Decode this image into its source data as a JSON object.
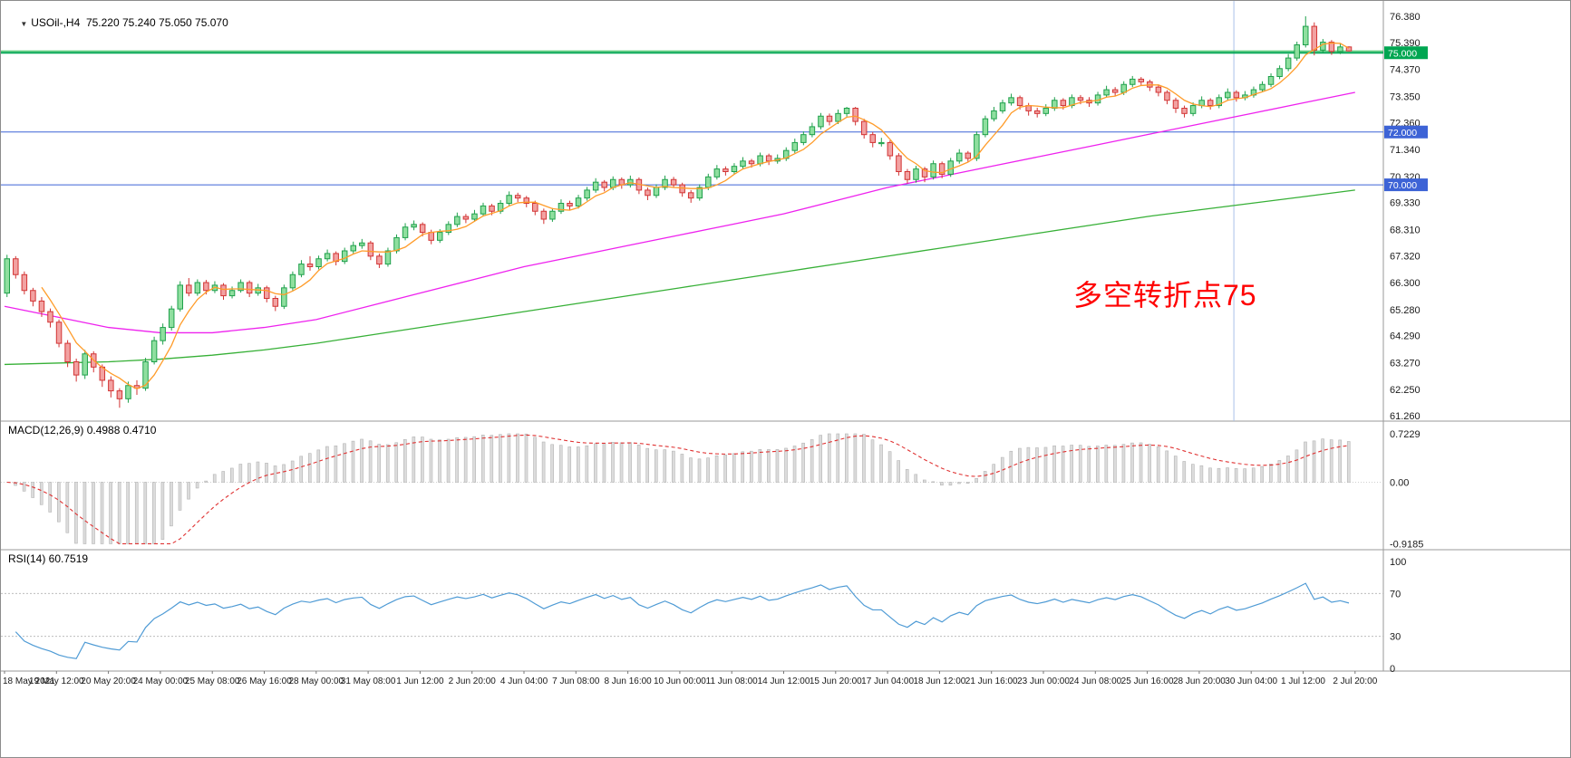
{
  "chart_data": {
    "type": "candlestick",
    "symbol": "USOil-",
    "timeframe": "H4",
    "bars_per_label": 6,
    "x_labels": [
      "18 May 2021",
      "19 May 12:00",
      "20 May 20:00",
      "24 May 00:00",
      "25 May 08:00",
      "26 May 16:00",
      "28 May 00:00",
      "31 May 08:00",
      "1 Jun 12:00",
      "2 Jun 20:00",
      "4 Jun 04:00",
      "7 Jun 08:00",
      "8 Jun 16:00",
      "10 Jun 00:00",
      "11 Jun 08:00",
      "14 Jun 12:00",
      "15 Jun 20:00",
      "17 Jun 04:00",
      "18 Jun 12:00",
      "21 Jun 16:00",
      "23 Jun 00:00",
      "24 Jun 08:00",
      "25 Jun 16:00",
      "28 Jun 20:00",
      "30 Jun 04:00",
      "1 Jul 12:00",
      "2 Jul 20:00"
    ],
    "panes": {
      "main": {
        "title": "USOil-,H4  75.220 75.240 75.050 75.070",
        "last_ohlc": {
          "open": 75.22,
          "high": 75.24,
          "low": 75.05,
          "close": 75.07
        },
        "y_ticks": [
          76.38,
          75.39,
          74.37,
          73.35,
          72.36,
          71.34,
          70.32,
          69.33,
          68.31,
          67.32,
          66.3,
          65.28,
          64.29,
          63.27,
          62.25,
          61.26
        ],
        "bull_color": "#1ea04b",
        "bull_fill": "#8fdf9f",
        "bear_color": "#d23434",
        "bear_fill": "#f2a2a2",
        "vline_index": 142,
        "levels": [
          {
            "price": 75.0,
            "label": "75.000",
            "color": "#00a651",
            "badge_bg": "#00a651",
            "width": 2
          },
          {
            "price": 75.07,
            "label": null,
            "color": "#2ebf57",
            "badge_bg": null,
            "width": 1
          },
          {
            "price": 72.0,
            "label": "72.000",
            "color": "#3d63d6",
            "badge_bg": "#3d63d6",
            "width": 1
          },
          {
            "price": 70.0,
            "label": "70.000",
            "color": "#3d63d6",
            "badge_bg": "#3d63d6",
            "width": 1
          }
        ],
        "moving_averages": [
          {
            "name": "fast",
            "color": "#ff9c2a",
            "period": 5
          },
          {
            "name": "mid",
            "color": "#ee22ee",
            "anchors": [
              65.4,
              65.0,
              64.6,
              64.4,
              64.4,
              64.6,
              64.9,
              65.4,
              65.9,
              66.4,
              66.9,
              67.3,
              67.7,
              68.1,
              68.5,
              68.9,
              69.4,
              69.9,
              70.3,
              70.7,
              71.1,
              71.5,
              71.9,
              72.3,
              72.7,
              73.1,
              73.5
            ]
          },
          {
            "name": "slow",
            "color": "#37b037",
            "anchors": [
              63.2,
              63.25,
              63.3,
              63.4,
              63.55,
              63.75,
              64.0,
              64.3,
              64.6,
              64.9,
              65.2,
              65.5,
              65.8,
              66.1,
              66.4,
              66.7,
              67.0,
              67.3,
              67.6,
              67.9,
              68.2,
              68.5,
              68.8,
              69.05,
              69.3,
              69.55,
              69.8
            ]
          }
        ],
        "annotation": {
          "text": "多空转折点75",
          "color": "#ff0000"
        },
        "candles_ohlc": [
          [
            65.9,
            67.35,
            65.75,
            67.2
          ],
          [
            67.2,
            67.3,
            66.45,
            66.6
          ],
          [
            66.6,
            66.72,
            65.85,
            66.0
          ],
          [
            66.0,
            66.1,
            65.4,
            65.6
          ],
          [
            65.6,
            65.75,
            65.0,
            65.2
          ],
          [
            65.2,
            65.32,
            64.6,
            64.8
          ],
          [
            64.8,
            64.9,
            63.85,
            64.0
          ],
          [
            64.0,
            64.12,
            63.1,
            63.3
          ],
          [
            63.3,
            63.42,
            62.55,
            62.8
          ],
          [
            62.8,
            63.75,
            62.65,
            63.6
          ],
          [
            63.6,
            63.7,
            62.9,
            63.1
          ],
          [
            63.1,
            63.2,
            62.35,
            62.6
          ],
          [
            62.6,
            62.75,
            61.95,
            62.2
          ],
          [
            62.2,
            62.3,
            61.56,
            61.9
          ],
          [
            61.9,
            62.55,
            61.75,
            62.4
          ],
          [
            62.4,
            62.6,
            62.05,
            62.3
          ],
          [
            62.3,
            63.45,
            62.2,
            63.3
          ],
          [
            63.3,
            64.25,
            63.2,
            64.1
          ],
          [
            64.1,
            64.75,
            63.95,
            64.6
          ],
          [
            64.6,
            65.42,
            64.48,
            65.3
          ],
          [
            65.3,
            66.35,
            65.2,
            66.2
          ],
          [
            66.2,
            66.47,
            65.78,
            65.9
          ],
          [
            65.9,
            66.42,
            65.8,
            66.3
          ],
          [
            66.3,
            66.4,
            65.85,
            66.0
          ],
          [
            66.0,
            66.35,
            65.9,
            66.2
          ],
          [
            66.2,
            66.28,
            65.65,
            65.8
          ],
          [
            65.8,
            66.15,
            65.7,
            66.0
          ],
          [
            66.0,
            66.42,
            65.92,
            66.3
          ],
          [
            66.3,
            66.38,
            65.75,
            65.9
          ],
          [
            65.9,
            66.25,
            65.8,
            66.1
          ],
          [
            66.1,
            66.18,
            65.55,
            65.7
          ],
          [
            65.7,
            65.8,
            65.22,
            65.4
          ],
          [
            65.4,
            66.22,
            65.3,
            66.1
          ],
          [
            66.1,
            66.72,
            66.0,
            66.6
          ],
          [
            66.6,
            67.15,
            66.5,
            67.0
          ],
          [
            67.0,
            67.3,
            66.75,
            66.9
          ],
          [
            66.9,
            67.32,
            66.8,
            67.2
          ],
          [
            67.2,
            67.55,
            67.1,
            67.4
          ],
          [
            67.4,
            67.48,
            66.95,
            67.1
          ],
          [
            67.1,
            67.62,
            67.0,
            67.5
          ],
          [
            67.5,
            67.85,
            67.4,
            67.7
          ],
          [
            67.7,
            67.95,
            67.58,
            67.8
          ],
          [
            67.8,
            67.88,
            67.15,
            67.3
          ],
          [
            67.3,
            67.4,
            66.85,
            67.0
          ],
          [
            67.0,
            67.62,
            66.9,
            67.5
          ],
          [
            67.5,
            68.12,
            67.4,
            68.0
          ],
          [
            68.0,
            68.55,
            67.9,
            68.4
          ],
          [
            68.4,
            68.65,
            68.28,
            68.5
          ],
          [
            68.5,
            68.58,
            68.05,
            68.2
          ],
          [
            68.2,
            68.3,
            67.75,
            67.9
          ],
          [
            67.9,
            68.32,
            67.8,
            68.2
          ],
          [
            68.2,
            68.62,
            68.1,
            68.5
          ],
          [
            68.5,
            68.95,
            68.4,
            68.8
          ],
          [
            68.8,
            68.9,
            68.55,
            68.7
          ],
          [
            68.7,
            69.05,
            68.6,
            68.9
          ],
          [
            68.9,
            69.32,
            68.8,
            69.2
          ],
          [
            69.2,
            69.28,
            68.85,
            69.0
          ],
          [
            69.0,
            69.42,
            68.9,
            69.3
          ],
          [
            69.3,
            69.75,
            69.2,
            69.6
          ],
          [
            69.6,
            69.7,
            69.35,
            69.5
          ],
          [
            69.5,
            69.58,
            69.15,
            69.3
          ],
          [
            69.3,
            69.4,
            68.85,
            69.0
          ],
          [
            69.0,
            69.1,
            68.52,
            68.7
          ],
          [
            68.7,
            69.12,
            68.6,
            69.0
          ],
          [
            69.0,
            69.45,
            68.9,
            69.3
          ],
          [
            69.3,
            69.4,
            69.05,
            69.2
          ],
          [
            69.2,
            69.62,
            69.1,
            69.5
          ],
          [
            69.5,
            69.92,
            69.4,
            69.8
          ],
          [
            69.8,
            70.25,
            69.7,
            70.1
          ],
          [
            70.1,
            70.18,
            69.75,
            69.9
          ],
          [
            69.9,
            70.32,
            69.8,
            70.2
          ],
          [
            70.2,
            70.28,
            69.85,
            70.0
          ],
          [
            70.0,
            70.35,
            69.9,
            70.2
          ],
          [
            70.2,
            70.28,
            69.65,
            69.8
          ],
          [
            69.8,
            69.9,
            69.42,
            69.6
          ],
          [
            69.6,
            70.02,
            69.5,
            69.9
          ],
          [
            69.9,
            70.35,
            69.8,
            70.2
          ],
          [
            70.2,
            70.3,
            69.88,
            70.0
          ],
          [
            70.0,
            70.08,
            69.55,
            69.7
          ],
          [
            69.7,
            69.8,
            69.32,
            69.5
          ],
          [
            69.5,
            70.02,
            69.4,
            69.9
          ],
          [
            69.9,
            70.42,
            69.8,
            70.3
          ],
          [
            70.3,
            70.75,
            70.2,
            70.6
          ],
          [
            70.6,
            70.7,
            70.35,
            70.5
          ],
          [
            70.5,
            70.82,
            70.4,
            70.7
          ],
          [
            70.7,
            71.05,
            70.6,
            70.9
          ],
          [
            70.9,
            70.98,
            70.65,
            70.8
          ],
          [
            70.8,
            71.22,
            70.7,
            71.1
          ],
          [
            71.1,
            71.18,
            70.75,
            70.9
          ],
          [
            70.9,
            71.15,
            70.8,
            71.0
          ],
          [
            71.0,
            71.42,
            70.9,
            71.3
          ],
          [
            71.3,
            71.75,
            71.2,
            71.6
          ],
          [
            71.6,
            72.02,
            71.5,
            71.9
          ],
          [
            71.9,
            72.35,
            71.8,
            72.2
          ],
          [
            72.2,
            72.72,
            72.1,
            72.6
          ],
          [
            72.6,
            72.7,
            72.25,
            72.4
          ],
          [
            72.4,
            72.85,
            72.3,
            72.7
          ],
          [
            72.7,
            72.95,
            72.58,
            72.9
          ],
          [
            72.9,
            72.95,
            72.25,
            72.4
          ],
          [
            72.4,
            72.5,
            71.75,
            71.9
          ],
          [
            71.9,
            72.0,
            71.42,
            71.6
          ],
          [
            71.6,
            71.78,
            71.45,
            71.6
          ],
          [
            71.6,
            71.68,
            70.95,
            71.1
          ],
          [
            71.1,
            71.2,
            70.35,
            70.5
          ],
          [
            70.5,
            70.6,
            70.05,
            70.2
          ],
          [
            70.2,
            70.72,
            70.08,
            70.6
          ],
          [
            70.6,
            70.68,
            70.1,
            70.3
          ],
          [
            70.3,
            70.92,
            70.2,
            70.8
          ],
          [
            70.8,
            70.88,
            70.25,
            70.4
          ],
          [
            70.4,
            71.02,
            70.3,
            70.9
          ],
          [
            70.9,
            71.35,
            70.8,
            71.2
          ],
          [
            71.2,
            71.28,
            70.85,
            71.0
          ],
          [
            71.0,
            72.02,
            70.9,
            71.9
          ],
          [
            71.9,
            72.62,
            71.8,
            72.5
          ],
          [
            72.5,
            72.95,
            72.4,
            72.8
          ],
          [
            72.8,
            73.22,
            72.7,
            73.1
          ],
          [
            73.1,
            73.45,
            73.0,
            73.3
          ],
          [
            73.3,
            73.38,
            72.85,
            73.0
          ],
          [
            73.0,
            73.1,
            72.62,
            72.8
          ],
          [
            72.8,
            72.92,
            72.55,
            72.7
          ],
          [
            72.7,
            73.05,
            72.6,
            72.9
          ],
          [
            72.9,
            73.32,
            72.8,
            73.2
          ],
          [
            73.2,
            73.28,
            72.85,
            73.0
          ],
          [
            73.0,
            73.42,
            72.9,
            73.3
          ],
          [
            73.3,
            73.4,
            73.05,
            73.2
          ],
          [
            73.2,
            73.32,
            72.95,
            73.1
          ],
          [
            73.1,
            73.52,
            73.0,
            73.4
          ],
          [
            73.4,
            73.75,
            73.3,
            73.6
          ],
          [
            73.6,
            73.7,
            73.35,
            73.5
          ],
          [
            73.5,
            73.92,
            73.4,
            73.8
          ],
          [
            73.8,
            74.12,
            73.7,
            74.0
          ],
          [
            74.0,
            74.08,
            73.75,
            73.9
          ],
          [
            73.9,
            73.98,
            73.55,
            73.7
          ],
          [
            73.7,
            73.8,
            73.35,
            73.5
          ],
          [
            73.5,
            73.58,
            73.05,
            73.2
          ],
          [
            73.2,
            73.3,
            72.72,
            72.9
          ],
          [
            72.9,
            73.0,
            72.55,
            72.7
          ],
          [
            72.7,
            73.12,
            72.6,
            73.0
          ],
          [
            73.0,
            73.35,
            72.9,
            73.2
          ],
          [
            73.2,
            73.28,
            72.85,
            73.0
          ],
          [
            73.0,
            73.42,
            72.9,
            73.3
          ],
          [
            73.3,
            73.65,
            73.2,
            73.5
          ],
          [
            73.5,
            73.58,
            73.15,
            73.3
          ],
          [
            73.3,
            73.55,
            73.2,
            73.4
          ],
          [
            73.4,
            73.72,
            73.3,
            73.6
          ],
          [
            73.6,
            73.92,
            73.5,
            73.8
          ],
          [
            73.8,
            74.22,
            73.7,
            74.1
          ],
          [
            74.1,
            74.52,
            74.0,
            74.4
          ],
          [
            74.4,
            74.95,
            74.3,
            74.8
          ],
          [
            74.8,
            75.42,
            74.7,
            75.3
          ],
          [
            75.3,
            76.38,
            75.2,
            76.0
          ],
          [
            76.0,
            76.15,
            74.9,
            75.1
          ],
          [
            75.1,
            75.52,
            75.0,
            75.4
          ],
          [
            75.4,
            75.48,
            74.92,
            75.05
          ],
          [
            75.05,
            75.35,
            74.95,
            75.22
          ],
          [
            75.22,
            75.24,
            75.05,
            75.07
          ]
        ]
      },
      "macd": {
        "title": "MACD(12,26,9) 0.4988 0.4710",
        "params": [
          12,
          26,
          9
        ],
        "values": [
          0.4988,
          0.471
        ],
        "range": [
          -0.9185,
          0.7229
        ],
        "y_ticks": [
          0.7229,
          0,
          -0.9185
        ],
        "y_tick_labels": [
          "0.7229",
          "0.00",
          "-0.9185"
        ],
        "histogram_fill": "#dcdcdc",
        "histogram_stroke": "#b3b3b3",
        "signal_color": "#e03232"
      },
      "rsi": {
        "title": "RSI(14) 60.7519",
        "period": 14,
        "value": 60.7519,
        "levels": [
          70,
          30
        ],
        "y_ticks": [
          100,
          70,
          30,
          0
        ],
        "y_tick_labels": [
          "100",
          "70",
          "30",
          "0"
        ],
        "line_color": "#4f9bd5"
      }
    }
  }
}
